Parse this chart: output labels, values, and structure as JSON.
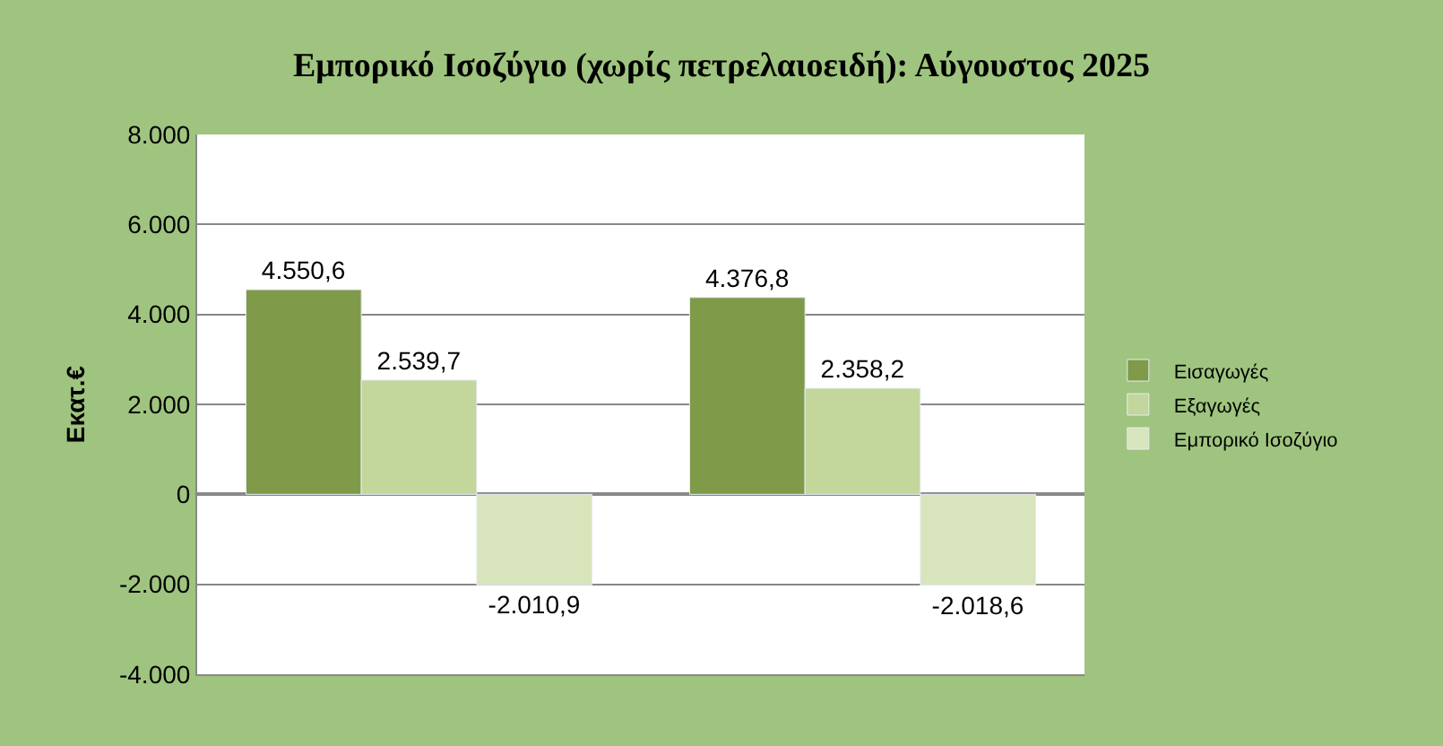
{
  "chart_data": {
    "type": "bar",
    "title": "Εμπορικό Ισοζύγιο (χωρίς πετρελαιοειδή): Αύγουστος 2025",
    "ylabel": "Εκατ.€",
    "categories": [
      null,
      null
    ],
    "series": [
      {
        "name": "Εισαγωγές",
        "color": "#7f9a48",
        "values": [
          4550.6,
          4376.8
        ],
        "value_labels": [
          "4.550,6",
          "4.376,8"
        ]
      },
      {
        "name": "Εξαγωγές",
        "color": "#c3d69b",
        "values": [
          2539.7,
          2358.2
        ],
        "value_labels": [
          "2.539,7",
          "2.358,2"
        ]
      },
      {
        "name": "Εμπορικό Ισοζύγιο",
        "color": "#d8e4bc",
        "values": [
          -2010.9,
          -2018.6
        ],
        "value_labels": [
          "-2.010,9",
          "-2.018,6"
        ]
      }
    ],
    "ylim": [
      -4000,
      8000
    ],
    "yticks": [
      {
        "value": -4000,
        "label": "-4.000"
      },
      {
        "value": -2000,
        "label": "-2.000"
      },
      0,
      {
        "value": 2000,
        "label": "2.000"
      },
      {
        "value": 4000,
        "label": "4.000"
      },
      {
        "value": 6000,
        "label": "6.000"
      },
      {
        "value": 8000,
        "label": "8.000"
      }
    ],
    "grid": "y",
    "legend": "right"
  }
}
